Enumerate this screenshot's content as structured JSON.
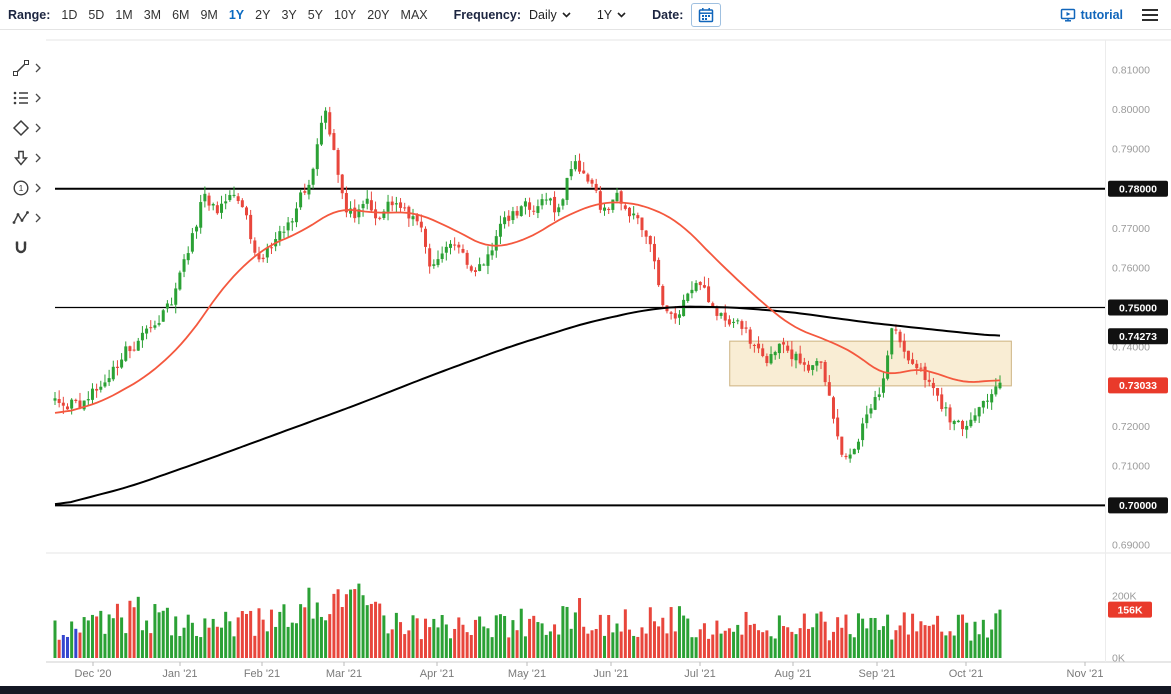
{
  "toolbar": {
    "range_label": "Range:",
    "range_options": [
      "1D",
      "5D",
      "1M",
      "3M",
      "6M",
      "9M",
      "1Y",
      "2Y",
      "3Y",
      "5Y",
      "10Y",
      "20Y",
      "MAX"
    ],
    "range_active": "1Y",
    "frequency_label": "Frequency:",
    "frequency_value": "Daily",
    "period_value": "1Y",
    "date_label": "Date:",
    "tutorial_label": "tutorial",
    "icons": [
      "calendar-icon",
      "chevron-down-icon",
      "tutorial-icon",
      "menu-icon"
    ],
    "colors": {
      "label": "#1c2540",
      "option": "#333333",
      "active_option": "#0b6bc2",
      "tutorial": "#1166bb"
    }
  },
  "sidebar": {
    "tools": [
      {
        "name": "trend-line-tool"
      },
      {
        "name": "fibonacci-tool"
      },
      {
        "name": "shapes-tool"
      },
      {
        "name": "arrow-tool"
      },
      {
        "name": "annotation-tool",
        "glyph": "1"
      },
      {
        "name": "elliott-wave-tool"
      },
      {
        "name": "magnet-tool"
      }
    ]
  },
  "chart_data": {
    "type": "candlestick",
    "frequency": "Daily",
    "range": "1Y",
    "x_axis": {
      "labels": [
        "Dec '20",
        "Jan '21",
        "Feb '21",
        "Mar '21",
        "Apr '21",
        "May '21",
        "Jun '21",
        "Jul '21",
        "Aug '21",
        "Sep '21",
        "Oct '21",
        "Nov '21"
      ],
      "positions": [
        93,
        180,
        262,
        344,
        437,
        527,
        611,
        700,
        793,
        877,
        966,
        1085
      ]
    },
    "y_axis": {
      "min": 0.69,
      "max": 0.81,
      "tick_step": 0.01,
      "decimals": 5
    },
    "levels": [
      0.78,
      0.75,
      0.7
    ],
    "last_price": 0.73033,
    "price_badges": [
      {
        "label": "0.78000",
        "price": 0.78,
        "color": "#111111"
      },
      {
        "label": "0.75000",
        "price": 0.75,
        "color": "#111111"
      },
      {
        "label": "0.74273",
        "price": 0.74273,
        "color": "#111111"
      },
      {
        "label": "0.73033",
        "price": 0.73033,
        "color": "#e93a2b"
      },
      {
        "label": "0.70000",
        "price": 0.7,
        "color": "#111111"
      }
    ],
    "up_color": "#2ba135",
    "down_color": "#e8463c",
    "candle_count": 228,
    "price_anchors": [
      [
        0.0,
        0.7285
      ],
      [
        0.025,
        0.7262
      ],
      [
        0.055,
        0.733
      ],
      [
        0.085,
        0.742
      ],
      [
        0.105,
        0.7438
      ],
      [
        0.125,
        0.752
      ],
      [
        0.14,
        0.762
      ],
      [
        0.158,
        0.7788
      ],
      [
        0.172,
        0.7745
      ],
      [
        0.188,
        0.777
      ],
      [
        0.205,
        0.77
      ],
      [
        0.218,
        0.7612
      ],
      [
        0.235,
        0.769
      ],
      [
        0.255,
        0.775
      ],
      [
        0.272,
        0.783
      ],
      [
        0.285,
        0.7985
      ],
      [
        0.295,
        0.79
      ],
      [
        0.305,
        0.7762
      ],
      [
        0.318,
        0.7725
      ],
      [
        0.332,
        0.7758
      ],
      [
        0.345,
        0.773
      ],
      [
        0.355,
        0.7778
      ],
      [
        0.368,
        0.7768
      ],
      [
        0.385,
        0.77
      ],
      [
        0.4,
        0.7598
      ],
      [
        0.412,
        0.7625
      ],
      [
        0.428,
        0.7655
      ],
      [
        0.443,
        0.76
      ],
      [
        0.458,
        0.7635
      ],
      [
        0.472,
        0.7718
      ],
      [
        0.488,
        0.774
      ],
      [
        0.503,
        0.7752
      ],
      [
        0.518,
        0.7782
      ],
      [
        0.532,
        0.7738
      ],
      [
        0.548,
        0.7868
      ],
      [
        0.562,
        0.7838
      ],
      [
        0.578,
        0.7748
      ],
      [
        0.595,
        0.7768
      ],
      [
        0.612,
        0.775
      ],
      [
        0.628,
        0.7688
      ],
      [
        0.643,
        0.7495
      ],
      [
        0.658,
        0.7488
      ],
      [
        0.672,
        0.757
      ],
      [
        0.688,
        0.7545
      ],
      [
        0.7,
        0.7495
      ],
      [
        0.715,
        0.7465
      ],
      [
        0.728,
        0.744
      ],
      [
        0.742,
        0.7395
      ],
      [
        0.755,
        0.7372
      ],
      [
        0.768,
        0.74
      ],
      [
        0.782,
        0.7388
      ],
      [
        0.797,
        0.736
      ],
      [
        0.812,
        0.7342
      ],
      [
        0.826,
        0.718
      ],
      [
        0.836,
        0.7118
      ],
      [
        0.848,
        0.7155
      ],
      [
        0.86,
        0.725
      ],
      [
        0.872,
        0.7302
      ],
      [
        0.886,
        0.7448
      ],
      [
        0.898,
        0.7395
      ],
      [
        0.91,
        0.736
      ],
      [
        0.922,
        0.7332
      ],
      [
        0.935,
        0.727
      ],
      [
        0.948,
        0.7212
      ],
      [
        0.96,
        0.7195
      ],
      [
        0.972,
        0.724
      ],
      [
        0.985,
        0.7288
      ],
      [
        1.0,
        0.7303
      ]
    ],
    "ma_fast": {
      "color": "#f4583e",
      "anchors": [
        [
          0.0,
          0.7228
        ],
        [
          0.05,
          0.7262
        ],
        [
          0.1,
          0.733
        ],
        [
          0.14,
          0.742
        ],
        [
          0.18,
          0.756
        ],
        [
          0.22,
          0.765
        ],
        [
          0.26,
          0.769
        ],
        [
          0.3,
          0.7752
        ],
        [
          0.34,
          0.7738
        ],
        [
          0.38,
          0.7742
        ],
        [
          0.42,
          0.77
        ],
        [
          0.46,
          0.7648
        ],
        [
          0.5,
          0.7672
        ],
        [
          0.54,
          0.7732
        ],
        [
          0.58,
          0.7768
        ],
        [
          0.62,
          0.7762
        ],
        [
          0.66,
          0.7718
        ],
        [
          0.7,
          0.762
        ],
        [
          0.74,
          0.753
        ],
        [
          0.78,
          0.745
        ],
        [
          0.82,
          0.7415
        ],
        [
          0.85,
          0.738
        ],
        [
          0.88,
          0.732
        ],
        [
          0.905,
          0.7348
        ],
        [
          0.93,
          0.7338
        ],
        [
          0.96,
          0.7308
        ],
        [
          1.0,
          0.7318
        ]
      ]
    },
    "ma_slow": {
      "color": "#000000",
      "last_value": 0.74273,
      "anchors": [
        [
          0.0,
          0.6998
        ],
        [
          0.08,
          0.7048
        ],
        [
          0.16,
          0.7115
        ],
        [
          0.24,
          0.7185
        ],
        [
          0.32,
          0.7255
        ],
        [
          0.4,
          0.733
        ],
        [
          0.48,
          0.74
        ],
        [
          0.56,
          0.746
        ],
        [
          0.62,
          0.7492
        ],
        [
          0.66,
          0.7503
        ],
        [
          0.72,
          0.75
        ],
        [
          0.78,
          0.7488
        ],
        [
          0.86,
          0.7462
        ],
        [
          0.93,
          0.7444
        ],
        [
          1.0,
          0.7427
        ]
      ]
    },
    "highlight_box": {
      "t0": 0.714,
      "t1": 1.012,
      "price_low": 0.7302,
      "price_high": 0.7415,
      "fill": "#f7e9c9",
      "stroke": "#cdb381"
    },
    "volume": {
      "axis_labels": [
        {
          "label": "200K",
          "value": 200000
        },
        {
          "label": "0K",
          "value": 0
        }
      ],
      "badge": {
        "label": "156K",
        "value": 156000,
        "color": "#e93a2b"
      },
      "blue_bar_indices": [
        2,
        3,
        5
      ],
      "blue_color": "#3546cf"
    }
  }
}
